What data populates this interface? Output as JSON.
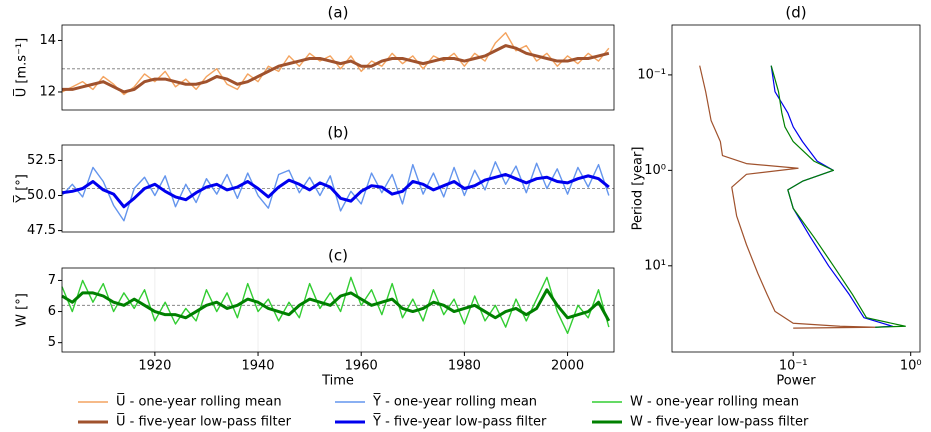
{
  "chart_data": [
    {
      "type": "line",
      "title": "(a)",
      "ylabel": "U̅ [m.s⁻¹]",
      "x": [
        1902,
        1904,
        1906,
        1908,
        1910,
        1912,
        1914,
        1916,
        1918,
        1920,
        1922,
        1924,
        1926,
        1928,
        1930,
        1932,
        1934,
        1936,
        1938,
        1940,
        1942,
        1944,
        1946,
        1948,
        1950,
        1952,
        1954,
        1956,
        1958,
        1960,
        1962,
        1964,
        1966,
        1968,
        1970,
        1972,
        1974,
        1976,
        1978,
        1980,
        1982,
        1984,
        1986,
        1988,
        1990,
        1992,
        1994,
        1996,
        1998,
        2000,
        2002,
        2004,
        2006,
        2008
      ],
      "xlim": [
        1902,
        2009
      ],
      "ylim": [
        11.3,
        14.6
      ],
      "yticks": [
        12,
        14
      ],
      "reference_line": 12.9,
      "series": [
        {
          "name": "U̅ - one-year rolling mean",
          "color": "#f4a460",
          "width": 1.4,
          "values": [
            12.0,
            12.2,
            12.4,
            12.1,
            12.6,
            12.3,
            11.9,
            12.2,
            12.7,
            12.4,
            12.8,
            12.2,
            12.5,
            12.1,
            12.6,
            12.9,
            12.3,
            12.1,
            12.7,
            12.4,
            13.0,
            12.8,
            13.4,
            13.0,
            13.5,
            13.2,
            13.4,
            12.9,
            13.4,
            12.8,
            13.2,
            13.0,
            13.5,
            13.1,
            13.4,
            12.9,
            13.4,
            13.2,
            13.5,
            13.0,
            13.5,
            13.2,
            13.9,
            14.3,
            13.6,
            13.8,
            13.2,
            13.5,
            13.0,
            13.4,
            13.1,
            13.5,
            13.2,
            13.7
          ]
        },
        {
          "name": "U̅ - five-year low-pass filter",
          "color": "#a0522d",
          "width": 3,
          "values": [
            12.1,
            12.1,
            12.2,
            12.3,
            12.4,
            12.2,
            12.0,
            12.1,
            12.4,
            12.5,
            12.5,
            12.4,
            12.3,
            12.3,
            12.4,
            12.6,
            12.5,
            12.3,
            12.4,
            12.6,
            12.8,
            13.0,
            13.1,
            13.2,
            13.3,
            13.3,
            13.2,
            13.1,
            13.2,
            13.0,
            13.0,
            13.2,
            13.3,
            13.3,
            13.2,
            13.1,
            13.2,
            13.3,
            13.3,
            13.2,
            13.3,
            13.4,
            13.6,
            13.8,
            13.7,
            13.5,
            13.4,
            13.3,
            13.2,
            13.2,
            13.3,
            13.3,
            13.4,
            13.5
          ]
        }
      ]
    },
    {
      "type": "line",
      "title": "(b)",
      "ylabel": "Y̅ [°]",
      "x": [
        1902,
        1904,
        1906,
        1908,
        1910,
        1912,
        1914,
        1916,
        1918,
        1920,
        1922,
        1924,
        1926,
        1928,
        1930,
        1932,
        1934,
        1936,
        1938,
        1940,
        1942,
        1944,
        1946,
        1948,
        1950,
        1952,
        1954,
        1956,
        1958,
        1960,
        1962,
        1964,
        1966,
        1968,
        1970,
        1972,
        1974,
        1976,
        1978,
        1980,
        1982,
        1984,
        1986,
        1988,
        1990,
        1992,
        1994,
        1996,
        1998,
        2000,
        2002,
        2004,
        2006,
        2008
      ],
      "xlim": [
        1902,
        2009
      ],
      "ylim": [
        47.4,
        53.6
      ],
      "yticks": [
        47.5,
        {
          "value": 50,
          "label": "50.0"
        },
        52.5
      ],
      "reference_line": 50.5,
      "series": [
        {
          "name": "Y̅ - one-year rolling mean",
          "color": "#6495ed",
          "width": 1.4,
          "values": [
            50.0,
            50.8,
            49.9,
            52.0,
            51.0,
            49.3,
            48.2,
            50.5,
            51.3,
            50.0,
            51.4,
            49.2,
            50.8,
            49.5,
            51.2,
            50.1,
            51.5,
            49.8,
            51.6,
            50.0,
            49.1,
            51.5,
            51.8,
            50.2,
            51.3,
            50.0,
            51.4,
            48.9,
            50.3,
            49.4,
            51.6,
            50.2,
            51.5,
            49.4,
            52.2,
            50.1,
            51.6,
            49.9,
            52.0,
            50.0,
            51.8,
            50.4,
            52.4,
            50.8,
            52.1,
            50.2,
            52.3,
            50.5,
            51.9,
            50.1,
            52.0,
            50.6,
            52.2,
            50.0
          ]
        },
        {
          "name": "Y̅ - five-year low-pass filter",
          "color": "#0000ee",
          "width": 3,
          "values": [
            50.2,
            50.3,
            50.5,
            51.0,
            50.4,
            50.1,
            49.2,
            49.8,
            50.5,
            50.8,
            50.3,
            49.9,
            49.7,
            50.2,
            50.6,
            50.8,
            50.4,
            50.6,
            51.0,
            50.5,
            49.9,
            50.6,
            51.1,
            50.8,
            50.4,
            50.9,
            50.6,
            49.8,
            49.6,
            50.3,
            50.7,
            50.6,
            50.1,
            50.3,
            51.0,
            50.8,
            50.4,
            50.7,
            51.0,
            50.5,
            50.7,
            51.1,
            51.3,
            51.5,
            51.2,
            50.9,
            51.2,
            51.3,
            51.0,
            50.9,
            51.2,
            51.4,
            51.2,
            50.6
          ]
        }
      ]
    },
    {
      "type": "line",
      "title": "(c)",
      "ylabel": "W [°]",
      "xlabel": "Time",
      "x": [
        1902,
        1904,
        1906,
        1908,
        1910,
        1912,
        1914,
        1916,
        1918,
        1920,
        1922,
        1924,
        1926,
        1928,
        1930,
        1932,
        1934,
        1936,
        1938,
        1940,
        1942,
        1944,
        1946,
        1948,
        1950,
        1952,
        1954,
        1956,
        1958,
        1960,
        1962,
        1964,
        1966,
        1968,
        1970,
        1972,
        1974,
        1976,
        1978,
        1980,
        1982,
        1984,
        1986,
        1988,
        1990,
        1992,
        1994,
        1996,
        1998,
        2000,
        2002,
        2004,
        2006,
        2008
      ],
      "xlim": [
        1902,
        2009
      ],
      "xticks": [
        1920,
        1940,
        1960,
        1980,
        2000
      ],
      "ylim": [
        4.7,
        7.4
      ],
      "yticks": [
        5,
        6,
        7
      ],
      "reference_line": 6.2,
      "series": [
        {
          "name": "W - one-year rolling mean",
          "color": "#32cd32",
          "width": 1.4,
          "values": [
            6.8,
            6.0,
            7.0,
            6.3,
            6.9,
            6.0,
            6.6,
            6.1,
            6.7,
            5.7,
            6.3,
            5.6,
            6.1,
            5.7,
            6.7,
            6.0,
            6.6,
            5.8,
            6.9,
            6.0,
            6.4,
            5.7,
            6.3,
            5.8,
            6.9,
            6.1,
            6.6,
            6.0,
            7.1,
            6.2,
            6.7,
            5.9,
            6.9,
            5.8,
            6.4,
            5.7,
            6.7,
            5.9,
            6.4,
            5.6,
            6.5,
            5.7,
            6.2,
            5.5,
            6.4,
            5.7,
            6.4,
            7.1,
            6.0,
            5.3,
            6.2,
            5.8,
            6.7,
            5.5
          ]
        },
        {
          "name": "W - five-year low-pass filter",
          "color": "#008000",
          "width": 3,
          "values": [
            6.5,
            6.3,
            6.6,
            6.6,
            6.5,
            6.3,
            6.2,
            6.4,
            6.2,
            6.0,
            5.9,
            5.9,
            5.8,
            6.0,
            6.2,
            6.3,
            6.1,
            6.2,
            6.4,
            6.3,
            6.1,
            6.0,
            5.9,
            6.2,
            6.4,
            6.3,
            6.2,
            6.5,
            6.6,
            6.4,
            6.2,
            6.3,
            6.4,
            6.1,
            6.0,
            6.1,
            6.3,
            6.2,
            6.0,
            6.1,
            6.2,
            6.0,
            5.8,
            6.0,
            6.1,
            5.9,
            6.1,
            6.7,
            6.2,
            5.8,
            5.9,
            6.0,
            6.3,
            5.7
          ]
        }
      ]
    },
    {
      "type": "loglog",
      "title": "(d)",
      "xlabel": "Power",
      "ylabel": "Period [year]",
      "invert_y": true,
      "xlim": [
        0.0093,
        1.2
      ],
      "xticks": [
        {
          "value": 0.1,
          "label": "10⁻¹"
        },
        {
          "value": 1,
          "label": "10⁰"
        }
      ],
      "ylim": [
        0.03,
        80
      ],
      "yticks": [
        {
          "value": 0.1,
          "label": "10⁻¹"
        },
        {
          "value": 1,
          "label": "10⁰"
        },
        {
          "value": 10,
          "label": "10¹"
        }
      ],
      "series": [
        {
          "color": "#a0522d",
          "x": [
            0.016,
            0.018,
            0.02,
            0.024,
            0.025,
            0.04,
            0.11,
            0.04,
            0.03,
            0.033,
            0.04,
            0.05,
            0.06,
            0.07,
            0.1,
            0.25,
            0.5,
            0.1
          ],
          "values": [
            0.08,
            0.15,
            0.3,
            0.5,
            0.7,
            0.85,
            0.95,
            1.1,
            1.5,
            3,
            6,
            12,
            20,
            30,
            40,
            43,
            44,
            45
          ]
        },
        {
          "color": "#0000ee",
          "x": [
            0.065,
            0.07,
            0.09,
            0.1,
            0.12,
            0.16,
            0.22,
            0.12,
            0.09,
            0.1,
            0.14,
            0.2,
            0.3,
            0.4,
            0.7,
            0.5
          ],
          "values": [
            0.08,
            0.15,
            0.25,
            0.35,
            0.5,
            0.8,
            1.0,
            1.3,
            1.6,
            2.5,
            5,
            10,
            20,
            35,
            43,
            44
          ]
        },
        {
          "color": "#008000",
          "x": [
            0.065,
            0.075,
            0.08,
            0.085,
            0.1,
            0.15,
            0.22,
            0.12,
            0.09,
            0.1,
            0.15,
            0.22,
            0.32,
            0.42,
            0.9,
            0.5
          ],
          "values": [
            0.08,
            0.15,
            0.25,
            0.35,
            0.5,
            0.8,
            1.0,
            1.3,
            1.6,
            2.5,
            5,
            10,
            20,
            35,
            43,
            44
          ]
        }
      ]
    }
  ]
}
